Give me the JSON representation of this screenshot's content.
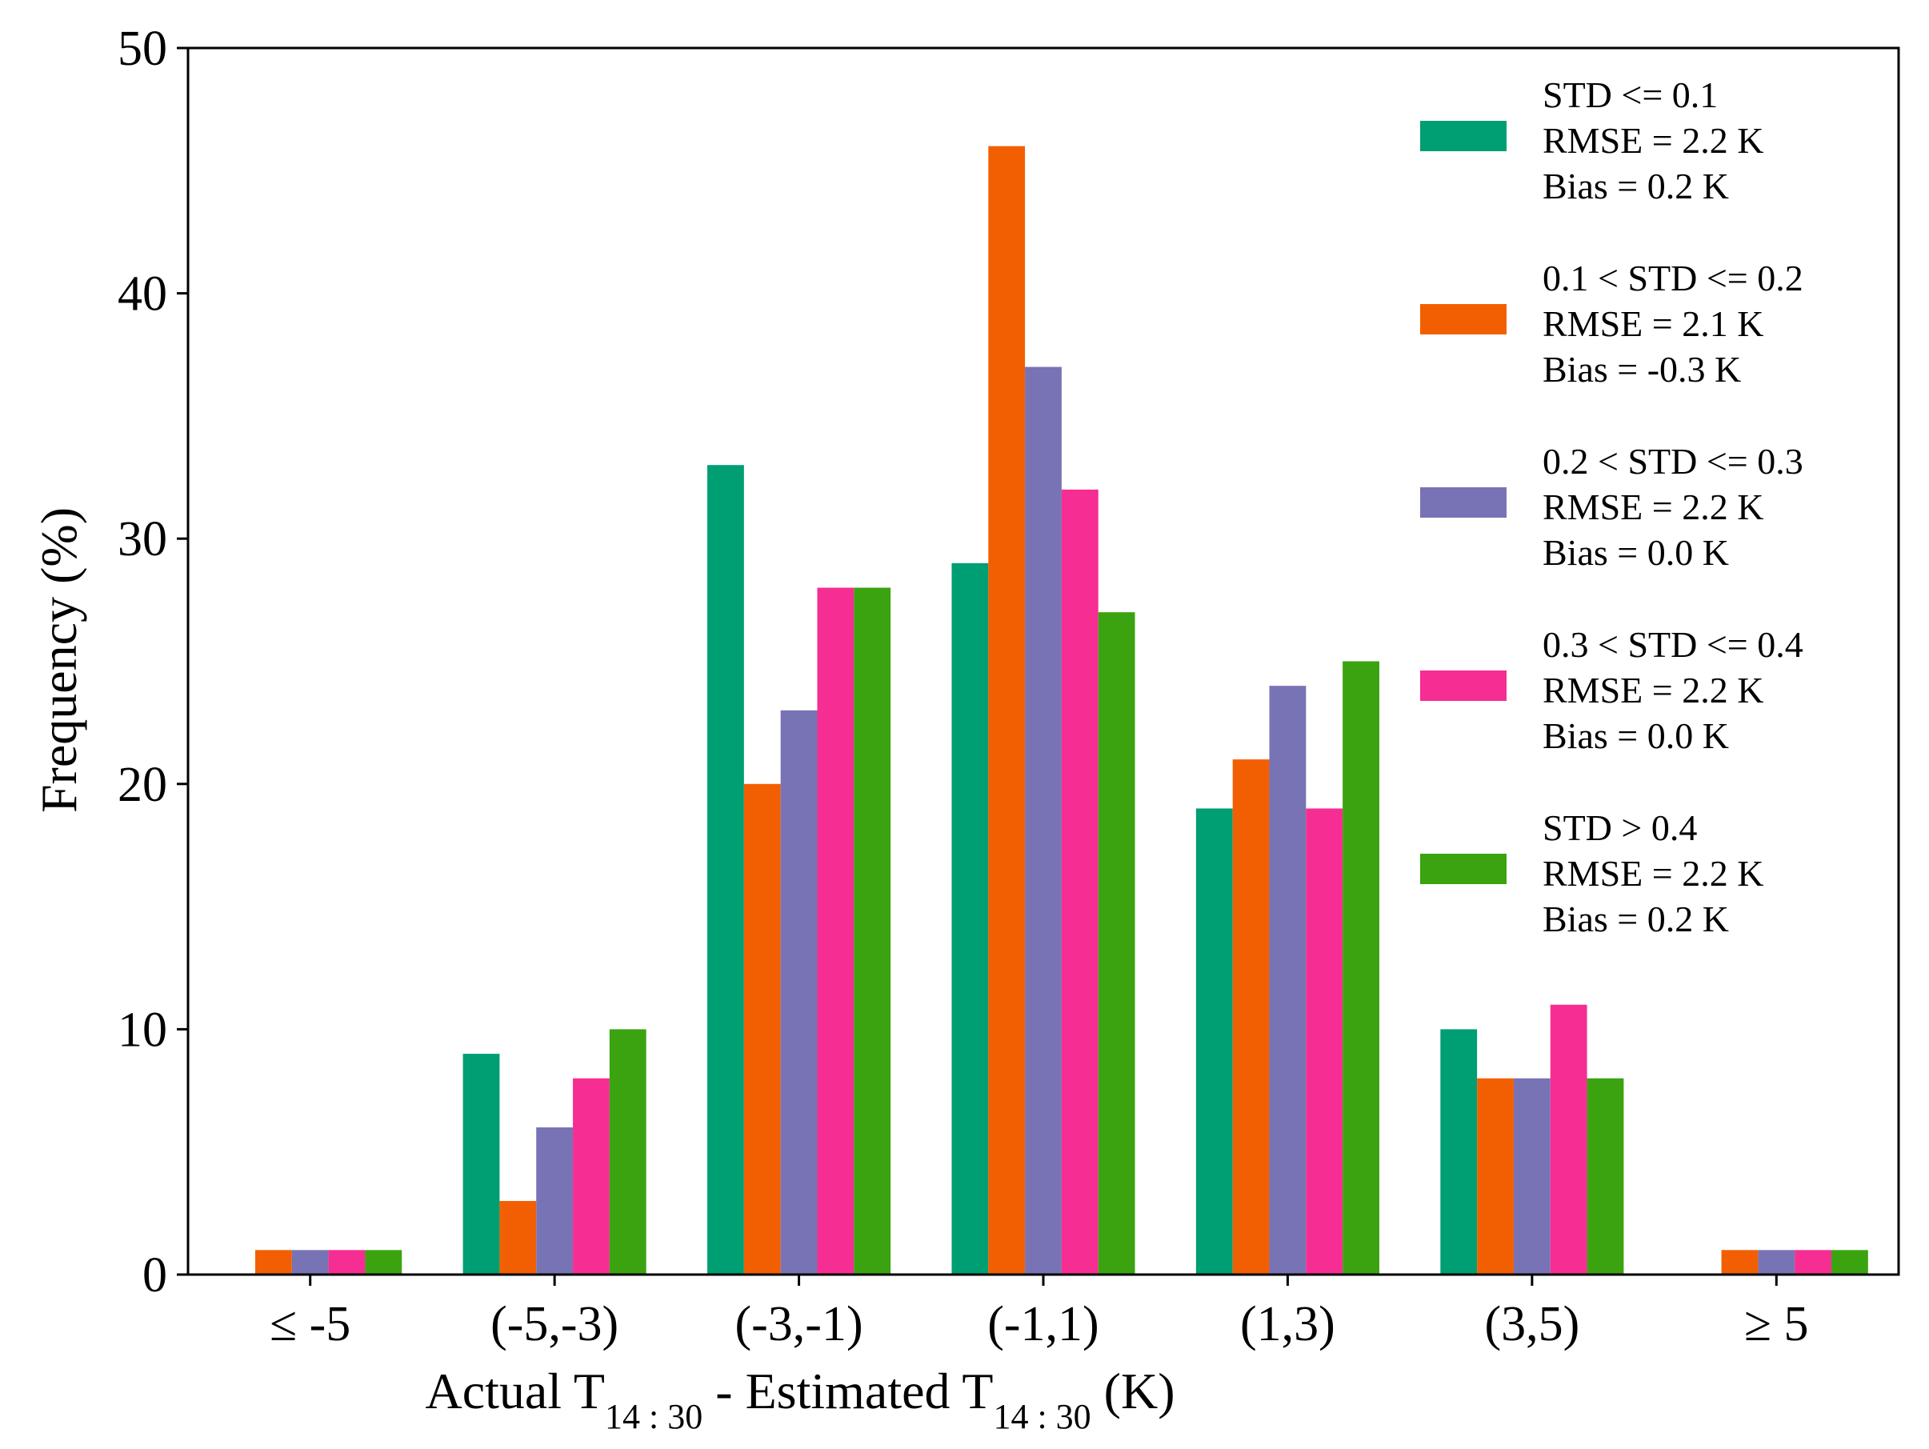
{
  "chart_data": {
    "type": "bar",
    "title": "",
    "xlabel": {
      "parts": [
        {
          "text": "Actual T",
          "sub": false
        },
        {
          "text": "14 : 30",
          "sub": true
        },
        {
          "text": " - Estimated T",
          "sub": false
        },
        {
          "text": "14 : 30",
          "sub": true
        },
        {
          "text": " (K)",
          "sub": false
        }
      ]
    },
    "ylabel": "Frequency (%)",
    "ylim": [
      0,
      50
    ],
    "yticks": [
      0,
      10,
      20,
      30,
      40,
      50
    ],
    "ytick_labels": [
      "0",
      "10",
      "20",
      "30",
      "40",
      "50"
    ],
    "grid": false,
    "legend_position": "top-right",
    "categories": [
      "≤ -5",
      "(-5,-3)",
      "(-3,-1)",
      "(-1,1)",
      "(1,3)",
      "(3,5)",
      "≥ 5"
    ],
    "series": [
      {
        "name": "STD <= 0.1",
        "color": "#009E73",
        "values": [
          0,
          9,
          33,
          29,
          19,
          10,
          0
        ],
        "legend_lines": [
          "STD <= 0.1",
          "RMSE = 2.2 K",
          "Bias = 0.2 K"
        ]
      },
      {
        "name": "0.1 < STD <= 0.2",
        "color": "#F25F02",
        "values": [
          1,
          3,
          20,
          46,
          21,
          8,
          1
        ],
        "legend_lines": [
          "0.1 < STD <= 0.2",
          "RMSE = 2.1 K",
          "Bias = -0.3 K"
        ]
      },
      {
        "name": "0.2 < STD <= 0.3",
        "color": "#7873B5",
        "values": [
          1,
          6,
          23,
          37,
          24,
          8,
          1
        ],
        "legend_lines": [
          "0.2 < STD <= 0.3",
          "RMSE = 2.2 K",
          "Bias = 0.0 K"
        ]
      },
      {
        "name": "0.3 < STD <= 0.4",
        "color": "#F62D92",
        "values": [
          1,
          8,
          28,
          32,
          19,
          11,
          1
        ],
        "legend_lines": [
          "0.3 < STD <= 0.4",
          "RMSE = 2.2 K",
          "Bias = 0.0 K"
        ]
      },
      {
        "name": "STD > 0.4",
        "color": "#3AA30F",
        "values": [
          1,
          10,
          28,
          27,
          25,
          8,
          1
        ],
        "legend_lines": [
          "STD > 0.4",
          "RMSE = 2.2 K",
          "Bias = 0.2 K"
        ]
      }
    ]
  }
}
